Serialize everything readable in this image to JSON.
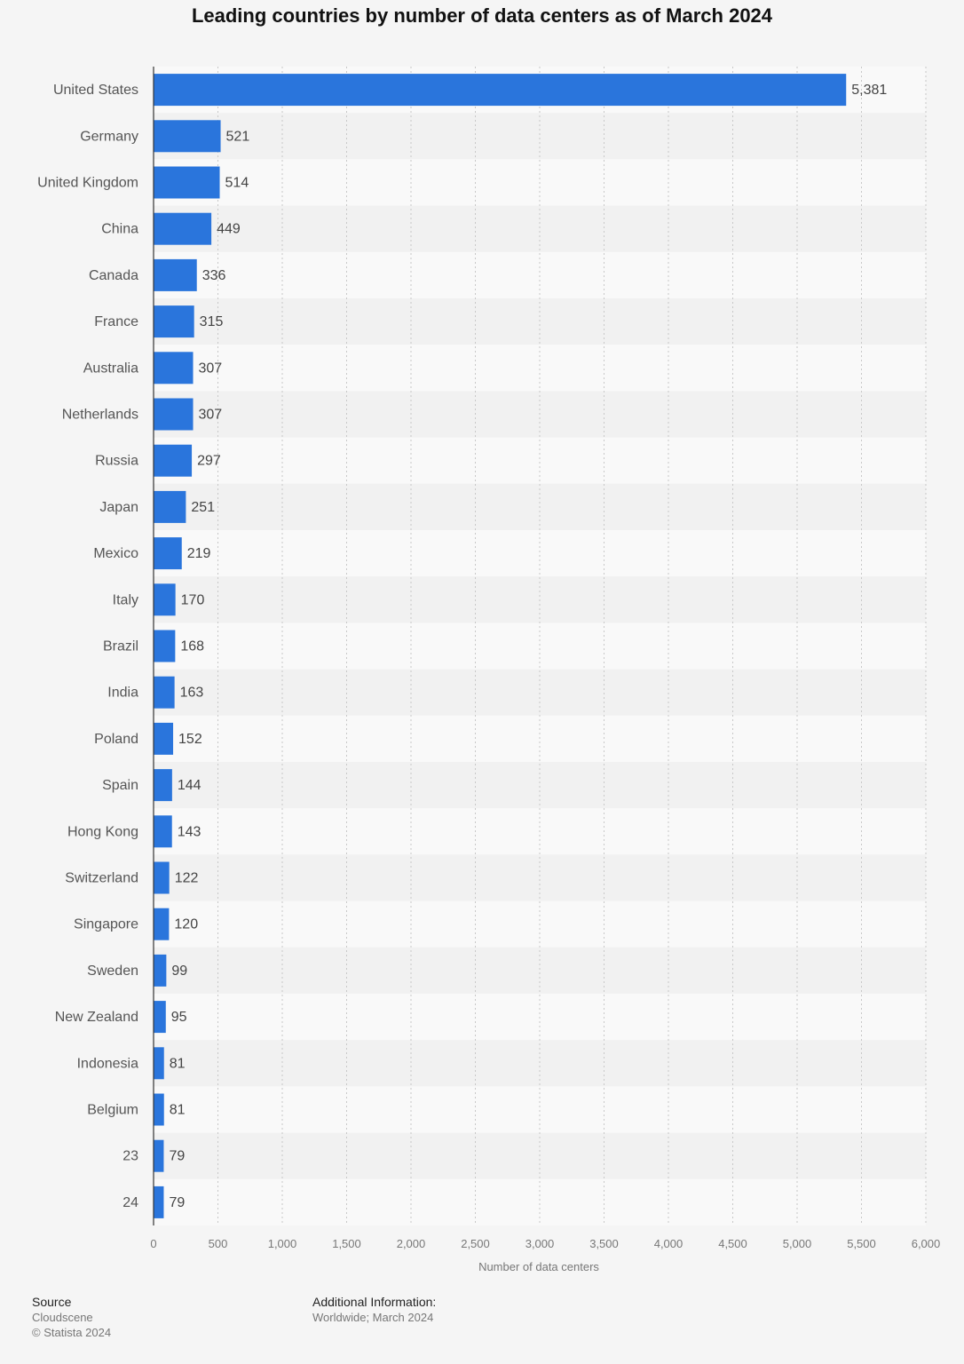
{
  "chart_data": {
    "type": "bar",
    "orientation": "horizontal",
    "title": "Leading countries by number of data centers as of March 2024",
    "xlabel": "Number of data centers",
    "ylabel": "",
    "xlim": [
      0,
      6000
    ],
    "x_ticks": [
      0,
      500,
      1000,
      1500,
      2000,
      2500,
      3000,
      3500,
      4000,
      4500,
      5000,
      5500,
      6000
    ],
    "x_tick_labels": [
      "0",
      "500",
      "1,000",
      "1,500",
      "2,000",
      "2,500",
      "3,000",
      "3,500",
      "4,000",
      "4,500",
      "5,000",
      "5,500",
      "6,000"
    ],
    "grid": true,
    "bar_color": "#2a75dc",
    "categories": [
      "United States",
      "Germany",
      "United Kingdom",
      "China",
      "Canada",
      "France",
      "Australia",
      "Netherlands",
      "Russia",
      "Japan",
      "Mexico",
      "Italy",
      "Brazil",
      "India",
      "Poland",
      "Spain",
      "Hong Kong",
      "Switzerland",
      "Singapore",
      "Sweden",
      "New Zealand",
      "Indonesia",
      "Belgium",
      "23",
      "24"
    ],
    "values": [
      5381,
      521,
      514,
      449,
      336,
      315,
      307,
      307,
      297,
      251,
      219,
      170,
      168,
      163,
      152,
      144,
      143,
      122,
      120,
      99,
      95,
      81,
      81,
      79,
      79
    ],
    "value_labels": [
      "5,381",
      "521",
      "514",
      "449",
      "336",
      "315",
      "307",
      "307",
      "297",
      "251",
      "219",
      "170",
      "168",
      "163",
      "152",
      "144",
      "143",
      "122",
      "120",
      "99",
      "95",
      "81",
      "81",
      "79",
      "79"
    ]
  },
  "footer": {
    "source_heading": "Source",
    "source_name": "Cloudscene",
    "copyright": "© Statista 2024",
    "info_heading": "Additional Information:",
    "info_text": "Worldwide; March 2024"
  }
}
